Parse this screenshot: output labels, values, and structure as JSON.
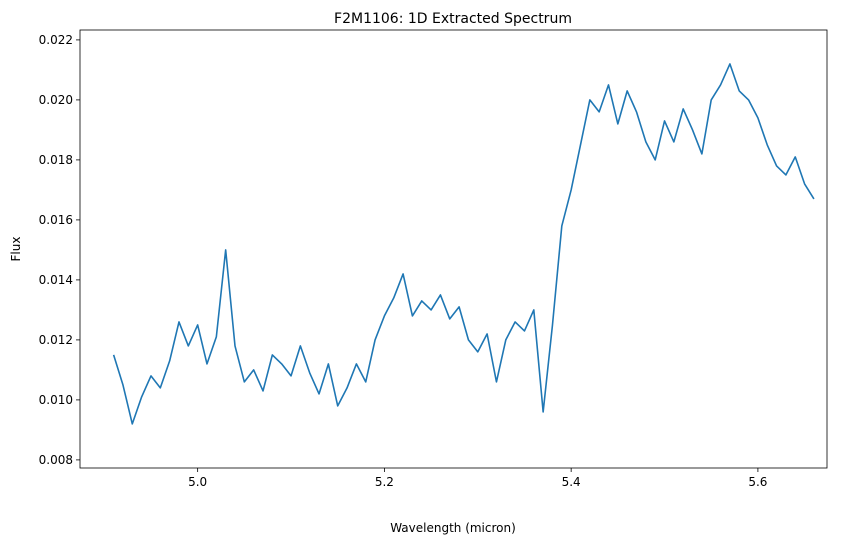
{
  "chart_data": {
    "type": "line",
    "title": "F2M1106: 1D Extracted Spectrum",
    "x_label": "Wavelength (micron)",
    "y_label": "Flux",
    "x": [
      4.91,
      4.92,
      4.93,
      4.94,
      4.95,
      4.96,
      4.97,
      4.98,
      4.99,
      5.0,
      5.01,
      5.02,
      5.03,
      5.04,
      5.05,
      5.06,
      5.07,
      5.08,
      5.09,
      5.1,
      5.11,
      5.12,
      5.13,
      5.14,
      5.15,
      5.16,
      5.17,
      5.18,
      5.19,
      5.2,
      5.21,
      5.22,
      5.23,
      5.24,
      5.25,
      5.26,
      5.27,
      5.28,
      5.29,
      5.3,
      5.31,
      5.32,
      5.33,
      5.34,
      5.35,
      5.36,
      5.37,
      5.38,
      5.39,
      5.4,
      5.41,
      5.42,
      5.43,
      5.44,
      5.45,
      5.46,
      5.47,
      5.48,
      5.49,
      5.5,
      5.51,
      5.52,
      5.53,
      5.54,
      5.55,
      5.56,
      5.57,
      5.58,
      5.59,
      5.6,
      5.61,
      5.62,
      5.63,
      5.64,
      5.65,
      5.66
    ],
    "series": [
      {
        "name": "Flux",
        "color": "#1f77b4",
        "values": [
          0.0115,
          0.0105,
          0.0092,
          0.0101,
          0.0108,
          0.0104,
          0.0113,
          0.0126,
          0.0118,
          0.0125,
          0.0112,
          0.0121,
          0.015,
          0.0118,
          0.0106,
          0.011,
          0.0103,
          0.0115,
          0.0112,
          0.0108,
          0.0118,
          0.0109,
          0.0102,
          0.0112,
          0.0098,
          0.0104,
          0.0112,
          0.0106,
          0.012,
          0.0128,
          0.0134,
          0.0142,
          0.0128,
          0.0133,
          0.013,
          0.0135,
          0.0127,
          0.0131,
          0.012,
          0.0116,
          0.0122,
          0.0106,
          0.012,
          0.0126,
          0.0123,
          0.013,
          0.0096,
          0.0125,
          0.0158,
          0.017,
          0.0185,
          0.02,
          0.0196,
          0.0205,
          0.0192,
          0.0203,
          0.0196,
          0.0186,
          0.018,
          0.0193,
          0.0186,
          0.0197,
          0.019,
          0.0182,
          0.02,
          0.0205,
          0.0212,
          0.0203,
          0.02,
          0.0194,
          0.0185,
          0.0178,
          0.0175,
          0.0181,
          0.0172,
          0.0167
        ]
      }
    ],
    "xlim": [
      4.874,
      5.674
    ],
    "ylim": [
      0.00773,
      0.02233
    ],
    "xticks": [
      {
        "value": 5.0,
        "label": "5.0"
      },
      5.2,
      5.4,
      5.6
    ],
    "yticks": [
      0.008,
      {
        "value": 0.01,
        "label": "0.010"
      },
      0.012,
      0.014,
      0.016,
      0.018,
      {
        "value": 0.02,
        "label": "0.020"
      },
      0.022
    ]
  }
}
